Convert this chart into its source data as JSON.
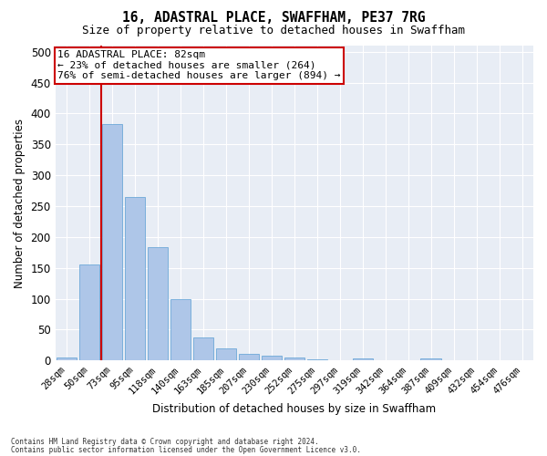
{
  "title": "16, ADASTRAL PLACE, SWAFFHAM, PE37 7RG",
  "subtitle": "Size of property relative to detached houses in Swaffham",
  "xlabel": "Distribution of detached houses by size in Swaffham",
  "ylabel": "Number of detached properties",
  "categories": [
    "28sqm",
    "50sqm",
    "73sqm",
    "95sqm",
    "118sqm",
    "140sqm",
    "163sqm",
    "185sqm",
    "207sqm",
    "230sqm",
    "252sqm",
    "275sqm",
    "297sqm",
    "319sqm",
    "342sqm",
    "364sqm",
    "387sqm",
    "409sqm",
    "432sqm",
    "454sqm",
    "476sqm"
  ],
  "values": [
    5,
    155,
    383,
    265,
    184,
    100,
    37,
    20,
    10,
    8,
    5,
    2,
    0,
    3,
    0,
    0,
    3,
    0,
    0,
    0,
    0
  ],
  "bar_color": "#aec6e8",
  "bar_edge_color": "#5a9fd4",
  "background_color": "#e8edf5",
  "grid_color": "#ffffff",
  "annotation_title": "16 ADASTRAL PLACE: 82sqm",
  "annotation_line1": "← 23% of detached houses are smaller (264)",
  "annotation_line2": "76% of semi-detached houses are larger (894) →",
  "annotation_box_color": "#ffffff",
  "annotation_box_edge": "#cc0000",
  "property_line_color": "#cc0000",
  "property_line_xindex": 1.5,
  "ylim": [
    0,
    510
  ],
  "yticks": [
    0,
    50,
    100,
    150,
    200,
    250,
    300,
    350,
    400,
    450,
    500
  ],
  "footnote1": "Contains HM Land Registry data © Crown copyright and database right 2024.",
  "footnote2": "Contains public sector information licensed under the Open Government Licence v3.0."
}
